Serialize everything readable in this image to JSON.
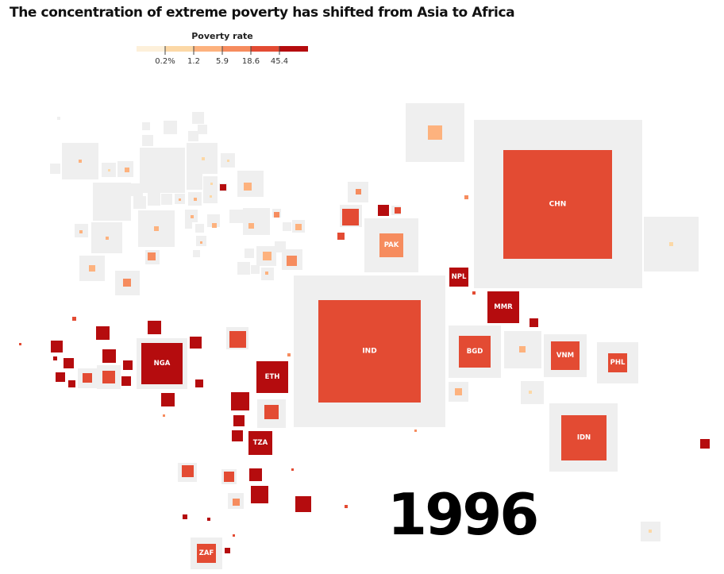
{
  "title": "The concentration of extreme poverty has shifted from Asia to Africa",
  "year": "1996",
  "legend": {
    "title": "Poverty rate",
    "ticks": [
      "0.2%",
      "1.2",
      "5.9",
      "18.6",
      "45.4"
    ],
    "colors": [
      "#fdf0da",
      "#fcd8a6",
      "#fdb27e",
      "#f68c5e",
      "#e34b33",
      "#b50c0e"
    ]
  },
  "chart_data": {
    "type": "cartogram",
    "title": "The concentration of extreme poverty has shifted from Asia to Africa",
    "legend_title": "Poverty rate",
    "legend_ticks": [
      "0.2%",
      "1.2",
      "5.9",
      "18.6",
      "45.4"
    ],
    "year": "1996",
    "labeled_countries": [
      "CHN",
      "IND",
      "PAK",
      "NPL",
      "MMR",
      "BGD",
      "VNM",
      "PHL",
      "IDN",
      "NGA",
      "ETH",
      "TZA",
      "ZAF"
    ],
    "poverty_class_index": {
      "CHN": 4,
      "IND": 4,
      "PAK": 3,
      "NPL": 5,
      "MMR": 5,
      "BGD": 4,
      "VNM": 4,
      "PHL": 4,
      "IDN": 4,
      "NGA": 5,
      "ETH": 5,
      "TZA": 5,
      "ZAF": 4
    }
  }
}
